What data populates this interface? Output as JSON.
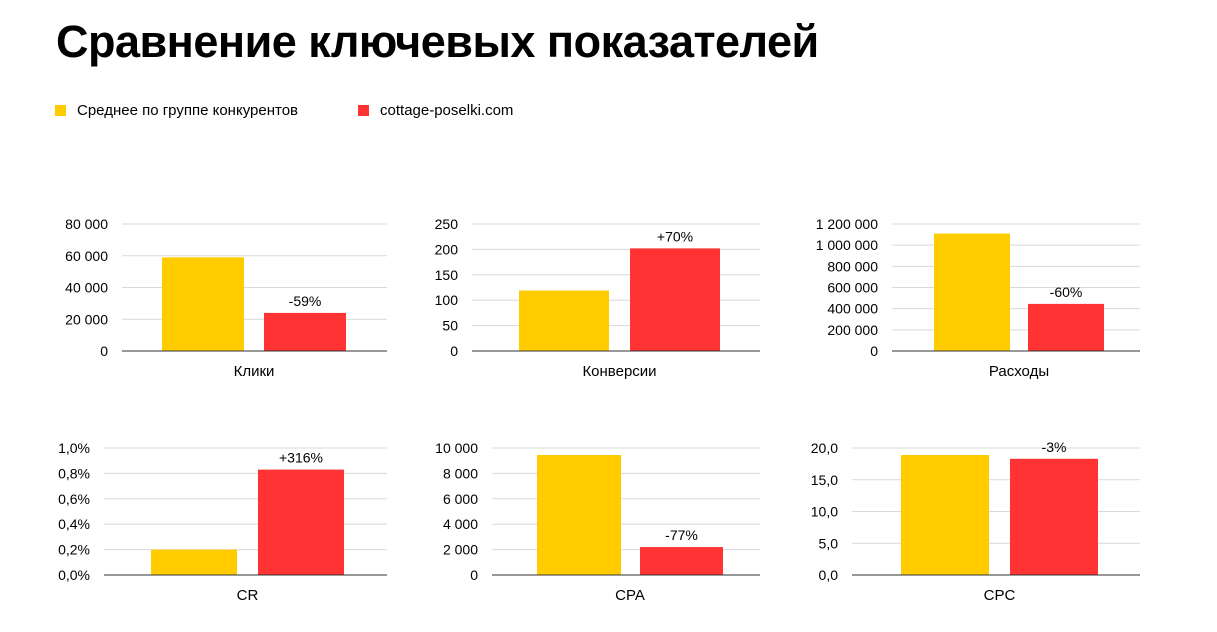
{
  "title": "Сравнение ключевых показателей",
  "legend": [
    {
      "label": "Среднее по группе конкурентов",
      "color": "#FFCC00"
    },
    {
      "label": "cottage-poselki.com",
      "color": "#FF3333"
    }
  ],
  "chart_data": [
    {
      "type": "bar",
      "category": "Клики",
      "series_values": [
        59000,
        24000
      ],
      "ylim": [
        0,
        80000
      ],
      "yticks": [
        "0",
        "20 000",
        "40 000",
        "60 000",
        "80 000"
      ],
      "annotation": "-59%"
    },
    {
      "type": "bar",
      "category": "Конверсии",
      "series_values": [
        119,
        202
      ],
      "ylim": [
        0,
        250
      ],
      "yticks": [
        "0",
        "50",
        "100",
        "150",
        "200",
        "250"
      ],
      "annotation": "+70%"
    },
    {
      "type": "bar",
      "category": "Расходы",
      "series_values": [
        1110000,
        445000
      ],
      "ylim": [
        0,
        1200000
      ],
      "yticks": [
        "0",
        "200 000",
        "400 000",
        "600 000",
        "800 000",
        "1 000 000",
        "1 200 000"
      ],
      "annotation": "-60%"
    },
    {
      "type": "bar",
      "category": "CR",
      "series_values": [
        0.2,
        0.83
      ],
      "ylim": [
        0,
        1.0
      ],
      "yticks": [
        "0,0%",
        "0,2%",
        "0,4%",
        "0,6%",
        "0,8%",
        "1,0%"
      ],
      "annotation": "+316%"
    },
    {
      "type": "bar",
      "category": "CPA",
      "series_values": [
        9450,
        2200
      ],
      "ylim": [
        0,
        10000
      ],
      "yticks": [
        "0",
        "2 000",
        "4 000",
        "6 000",
        "8 000",
        "10 000"
      ],
      "annotation": "-77%"
    },
    {
      "type": "bar",
      "category": "CPC",
      "series_values": [
        18.9,
        18.3
      ],
      "ylim": [
        0,
        20
      ],
      "yticks": [
        "0,0",
        "5,0",
        "10,0",
        "15,0",
        "20,0"
      ],
      "annotation": "-3%"
    }
  ]
}
